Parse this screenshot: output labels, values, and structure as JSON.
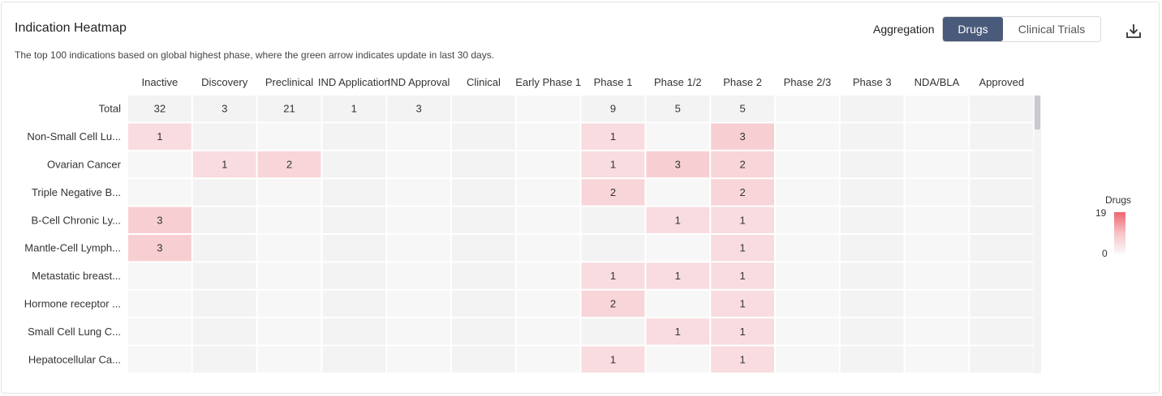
{
  "header": {
    "title": "Indication Heatmap",
    "subtitle": "The top 100 indications based on global highest phase, where the green arrow indicates update in last 30 days.",
    "aggregation_label": "Aggregation",
    "tabs": [
      "Drugs",
      "Clinical Trials"
    ],
    "active_tab": "Drugs",
    "download_icon": "download-icon"
  },
  "legend": {
    "title": "Drugs",
    "max": "19",
    "min": "0"
  },
  "colors": {
    "accent": "#4a5a7a",
    "heat_high": "#f0656f",
    "cell_bg_a": "#f7f7f7",
    "cell_bg_b": "#f3f3f4"
  },
  "chart_data": {
    "type": "heatmap",
    "title": "Indication Heatmap",
    "value_range": [
      0,
      19
    ],
    "columns": [
      "Inactive",
      "Discovery",
      "Preclinical",
      "IND Application",
      "IND Approval",
      "Clinical",
      "Early Phase 1",
      "Phase 1",
      "Phase 1/2",
      "Phase 2",
      "Phase 2/3",
      "Phase 3",
      "NDA/BLA",
      "Approved"
    ],
    "rows": [
      {
        "label": "Total",
        "values": [
          32,
          3,
          21,
          1,
          3,
          null,
          null,
          9,
          5,
          5,
          null,
          null,
          null,
          null
        ]
      },
      {
        "label": "Non-Small Cell Lu...",
        "values": [
          1,
          null,
          null,
          null,
          null,
          null,
          null,
          1,
          null,
          3,
          null,
          null,
          null,
          null
        ]
      },
      {
        "label": "Ovarian Cancer",
        "values": [
          null,
          1,
          2,
          null,
          null,
          null,
          null,
          1,
          3,
          2,
          null,
          null,
          null,
          null
        ]
      },
      {
        "label": "Triple Negative B...",
        "values": [
          null,
          null,
          null,
          null,
          null,
          null,
          null,
          2,
          null,
          2,
          null,
          null,
          null,
          null
        ]
      },
      {
        "label": "B-Cell Chronic Ly...",
        "values": [
          3,
          null,
          null,
          null,
          null,
          null,
          null,
          null,
          1,
          1,
          null,
          null,
          null,
          null
        ]
      },
      {
        "label": "Mantle-Cell Lymph...",
        "values": [
          3,
          null,
          null,
          null,
          null,
          null,
          null,
          null,
          null,
          1,
          null,
          null,
          null,
          null
        ]
      },
      {
        "label": "Metastatic breast...",
        "values": [
          null,
          null,
          null,
          null,
          null,
          null,
          null,
          1,
          1,
          1,
          null,
          null,
          null,
          null
        ]
      },
      {
        "label": "Hormone receptor ...",
        "values": [
          null,
          null,
          null,
          null,
          null,
          null,
          null,
          2,
          null,
          1,
          null,
          null,
          null,
          null
        ]
      },
      {
        "label": "Small Cell Lung C...",
        "values": [
          null,
          null,
          null,
          null,
          null,
          null,
          null,
          null,
          1,
          1,
          null,
          null,
          null,
          null
        ]
      },
      {
        "label": "Hepatocellular Ca...",
        "values": [
          null,
          null,
          null,
          null,
          null,
          null,
          null,
          1,
          null,
          1,
          null,
          null,
          null,
          null
        ]
      }
    ]
  }
}
